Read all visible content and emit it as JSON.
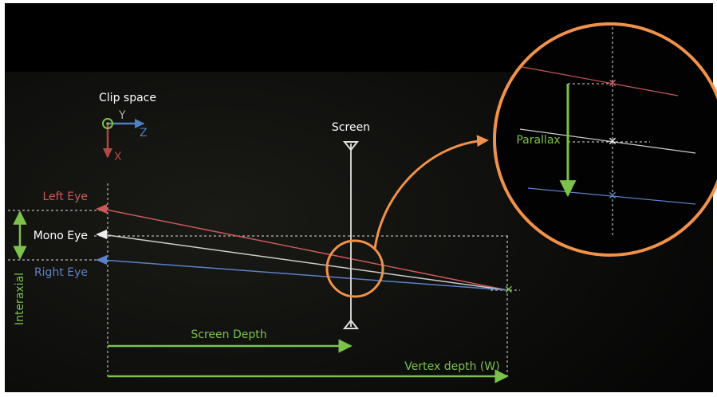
{
  "clip_space": {
    "title": "Clip space",
    "axis_y": "Y",
    "axis_z": "Z",
    "axis_x": "X"
  },
  "screen_label": "Screen",
  "eyes": {
    "left": "Left Eye",
    "mono": "Mono Eye",
    "right": "Right Eye"
  },
  "interaxial": "Interaxial",
  "screen_depth": "Screen Depth",
  "vertex_depth": "Vertex depth (W)",
  "parallax": "Parallax"
}
